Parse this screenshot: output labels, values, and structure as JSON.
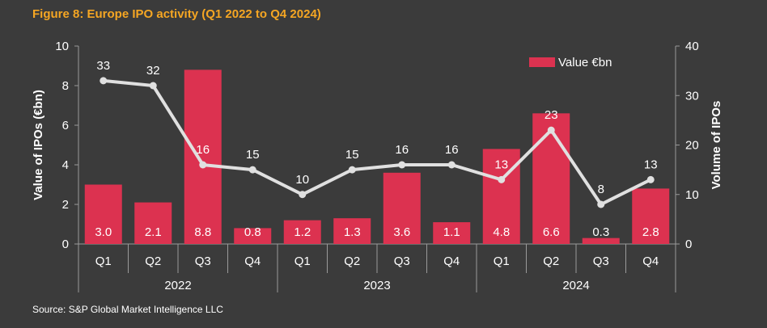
{
  "title": "Figure 8: Europe IPO activity (Q1 2022 to Q4 2024)",
  "source": "Source: S&P Global Market Intelligence LLC",
  "colors": {
    "background": "#3b3b3b",
    "bar": "#dc3250",
    "line": "#e0e0e0",
    "title": "#f5a623",
    "axis": "#9a9a9a",
    "text": "#ffffff"
  },
  "chart_data": {
    "type": "bar",
    "categories": [
      "Q1",
      "Q2",
      "Q3",
      "Q4",
      "Q1",
      "Q2",
      "Q3",
      "Q4",
      "Q1",
      "Q2",
      "Q3",
      "Q4"
    ],
    "years": [
      {
        "label": "2022",
        "span": [
          0,
          3
        ]
      },
      {
        "label": "2023",
        "span": [
          4,
          7
        ]
      },
      {
        "label": "2024",
        "span": [
          8,
          11
        ]
      }
    ],
    "series": [
      {
        "name": "Value €bn",
        "type": "bar",
        "axis": "left",
        "values": [
          3.0,
          2.1,
          8.8,
          0.8,
          1.2,
          1.3,
          3.6,
          1.1,
          4.8,
          6.6,
          0.3,
          2.8
        ],
        "labels": [
          "3.0",
          "2.1",
          "8.8",
          "0.8",
          "1.2",
          "1.3",
          "3.6",
          "1.1",
          "4.8",
          "6.6",
          "0.3",
          "2.8"
        ]
      },
      {
        "type": "line",
        "axis": "right",
        "values": [
          33,
          32,
          16,
          15,
          10,
          15,
          16,
          16,
          13,
          23,
          8,
          13
        ],
        "labels": [
          "33",
          "32",
          "16",
          "15",
          "10",
          "15",
          "16",
          "16",
          "13",
          "23",
          "8",
          "13"
        ]
      }
    ],
    "ylabel": "Value of IPOs (€bn)",
    "y2label": "Volume of IPOs",
    "ylim": [
      0,
      10
    ],
    "y2lim": [
      0,
      40
    ],
    "yticks": [
      "0",
      "2",
      "4",
      "6",
      "8",
      "10"
    ],
    "y2ticks": [
      "0",
      "10",
      "20",
      "30",
      "40"
    ],
    "legend": "top-right",
    "grid": false
  }
}
